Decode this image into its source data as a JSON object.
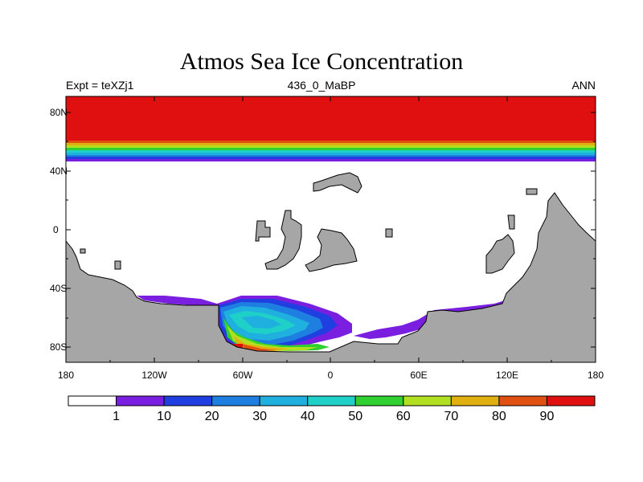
{
  "title": "Atmos Sea Ice Concentration",
  "subtitle_left": "Expt = teXZj1",
  "subtitle_center": "436_0_MaBP",
  "subtitle_right": "ANN",
  "y_ticks": [
    "80N",
    "40N",
    "0",
    "40S",
    "80S"
  ],
  "x_ticks": [
    "180",
    "120W",
    "60W",
    "0",
    "60E",
    "120E",
    "180"
  ],
  "colorbar": {
    "labels": [
      "1",
      "10",
      "20",
      "30",
      "40",
      "50",
      "60",
      "70",
      "80",
      "90"
    ],
    "colors": [
      "#ffffff",
      "#7a1fe0",
      "#1f3fe0",
      "#1f7fe0",
      "#1fb0e0",
      "#1fd0c8",
      "#30d030",
      "#b0e020",
      "#e0b010",
      "#e05010",
      "#e01010"
    ]
  },
  "colors": {
    "land": "#a6a6a6",
    "ocean": "#ffffff"
  }
}
